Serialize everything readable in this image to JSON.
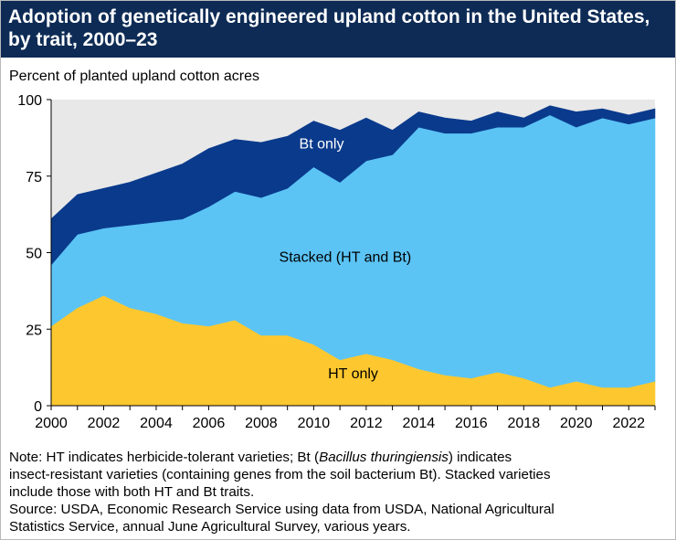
{
  "title_line1": "Adoption of genetically engineered upland cotton in the United States,",
  "title_line2": "by trait, 2000–23",
  "notes": {
    "line1_pre": "Note: HT indicates herbicide-tolerant varieties; Bt (",
    "line1_italic": "Bacillus thuringiensis",
    "line1_post": ") indicates",
    "line2": "insect-resistant varieties (containing genes from the soil bacterium Bt). Stacked varieties",
    "line3": "include those with both HT and Bt traits.",
    "line4": "Source: USDA, Economic Research Service using data from USDA, National Agricultural",
    "line5": "Statistics Service, annual June Agricultural Survey, various years."
  },
  "chart_data": {
    "type": "area",
    "stacked": true,
    "ylabel": "Percent of planted upland cotton acres",
    "ylim": [
      0,
      100
    ],
    "yticks": [
      0,
      25,
      50,
      75,
      100
    ],
    "xlim": [
      2000,
      2023
    ],
    "xticks": [
      2000,
      2002,
      2004,
      2006,
      2008,
      2010,
      2012,
      2014,
      2016,
      2018,
      2020,
      2022
    ],
    "x": [
      2000,
      2001,
      2002,
      2003,
      2004,
      2005,
      2006,
      2007,
      2008,
      2009,
      2010,
      2011,
      2012,
      2013,
      2014,
      2015,
      2016,
      2017,
      2018,
      2019,
      2020,
      2021,
      2022,
      2023
    ],
    "series": [
      {
        "name": "HT only",
        "color": "#fdc82f",
        "values": [
          26,
          32,
          36,
          32,
          30,
          27,
          26,
          28,
          23,
          23,
          20,
          15,
          17,
          15,
          12,
          10,
          9,
          11,
          9,
          6,
          8,
          6,
          6,
          8
        ]
      },
      {
        "name": "Stacked (HT and Bt)",
        "color": "#5bc4f5",
        "values": [
          20,
          24,
          22,
          27,
          30,
          34,
          39,
          42,
          45,
          48,
          58,
          58,
          63,
          67,
          79,
          79,
          80,
          80,
          82,
          89,
          83,
          88,
          86,
          86
        ]
      },
      {
        "name": "Bt only",
        "color": "#0a3a8c",
        "values": [
          15,
          13,
          13,
          14,
          16,
          18,
          19,
          17,
          18,
          17,
          15,
          17,
          14,
          8,
          5,
          5,
          4,
          5,
          3,
          3,
          5,
          3,
          3,
          3
        ]
      }
    ],
    "grid": false,
    "plot_background": "#e8e8e8",
    "legend": "labels inside areas"
  }
}
